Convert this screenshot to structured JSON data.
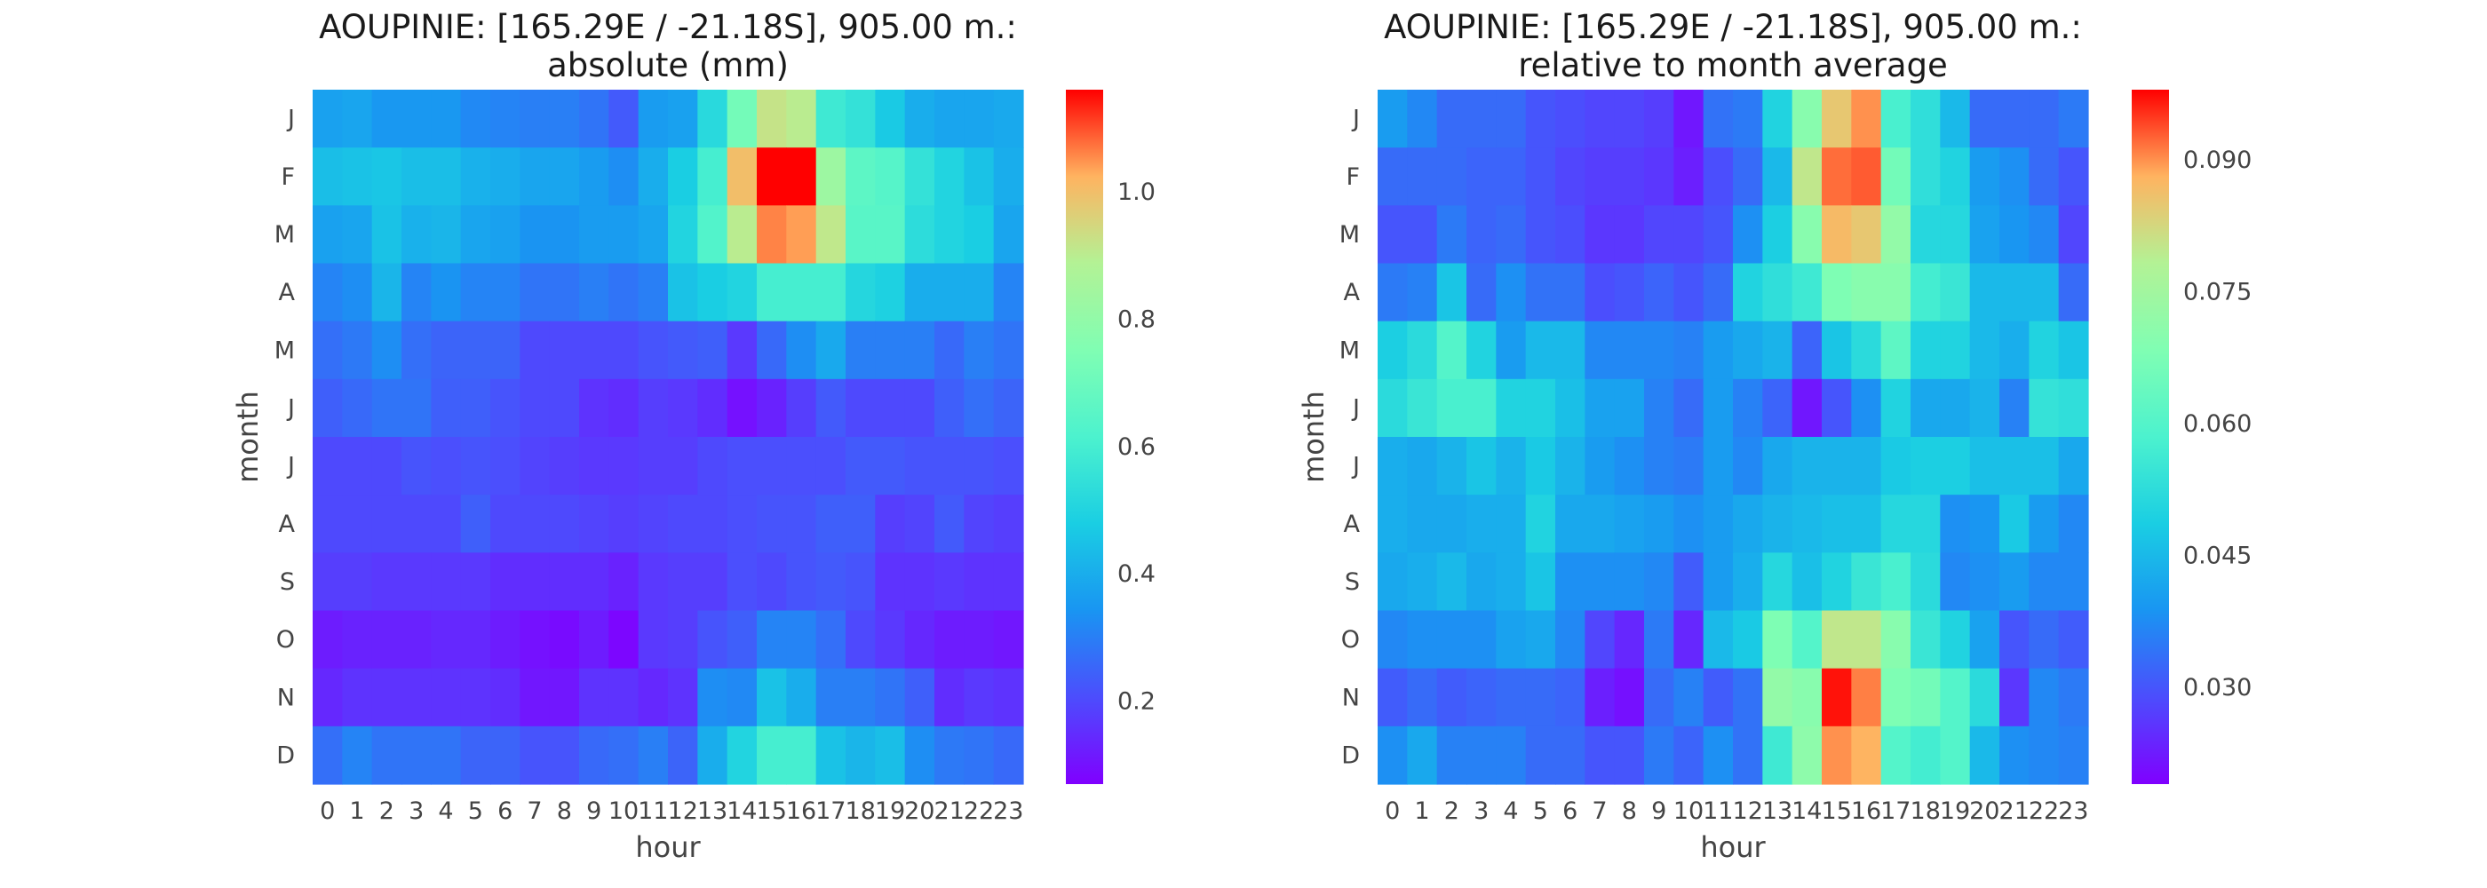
{
  "chart_data": [
    {
      "type": "heatmap",
      "title": "AOUPINIE: [165.29E / -21.18S], 905.00 m.:",
      "subtitle": "absolute (mm)",
      "xlabel": "hour",
      "ylabel": "month",
      "x": [
        "0",
        "1",
        "2",
        "3",
        "4",
        "5",
        "6",
        "7",
        "8",
        "9",
        "10",
        "11",
        "12",
        "13",
        "14",
        "15",
        "16",
        "17",
        "18",
        "19",
        "20",
        "21",
        "22",
        "23"
      ],
      "y": [
        "J",
        "F",
        "M",
        "A",
        "M",
        "J",
        "J",
        "A",
        "S",
        "O",
        "N",
        "D"
      ],
      "colormap": "rainbow",
      "vmin": 0.07,
      "vmax": 1.16,
      "colorbar_ticks": [
        0.2,
        0.4,
        0.6,
        0.8,
        1.0
      ],
      "colorbar_tick_labels": [
        "0.2",
        "0.4",
        "0.6",
        "0.8",
        "1.0"
      ],
      "values": [
        [
          0.37,
          0.38,
          0.35,
          0.35,
          0.35,
          0.32,
          0.31,
          0.3,
          0.3,
          0.28,
          0.23,
          0.36,
          0.37,
          0.52,
          0.72,
          0.92,
          0.9,
          0.58,
          0.55,
          0.47,
          0.4,
          0.38,
          0.38,
          0.39
        ],
        [
          0.44,
          0.45,
          0.46,
          0.44,
          0.44,
          0.41,
          0.4,
          0.38,
          0.38,
          0.36,
          0.33,
          0.4,
          0.48,
          0.6,
          1.0,
          1.16,
          1.16,
          0.83,
          0.66,
          0.64,
          0.55,
          0.5,
          0.45,
          0.4
        ],
        [
          0.37,
          0.38,
          0.45,
          0.41,
          0.42,
          0.38,
          0.37,
          0.34,
          0.34,
          0.36,
          0.36,
          0.38,
          0.5,
          0.63,
          0.9,
          1.06,
          1.04,
          0.91,
          0.65,
          0.65,
          0.53,
          0.5,
          0.48,
          0.38
        ],
        [
          0.31,
          0.33,
          0.42,
          0.31,
          0.34,
          0.31,
          0.31,
          0.28,
          0.28,
          0.3,
          0.28,
          0.3,
          0.45,
          0.48,
          0.5,
          0.6,
          0.6,
          0.6,
          0.51,
          0.49,
          0.4,
          0.4,
          0.4,
          0.31
        ],
        [
          0.27,
          0.29,
          0.33,
          0.27,
          0.25,
          0.25,
          0.25,
          0.2,
          0.2,
          0.2,
          0.2,
          0.22,
          0.23,
          0.24,
          0.17,
          0.26,
          0.33,
          0.39,
          0.3,
          0.3,
          0.3,
          0.26,
          0.3,
          0.28
        ],
        [
          0.24,
          0.26,
          0.28,
          0.28,
          0.24,
          0.24,
          0.22,
          0.2,
          0.2,
          0.16,
          0.15,
          0.18,
          0.17,
          0.15,
          0.1,
          0.13,
          0.18,
          0.23,
          0.2,
          0.2,
          0.2,
          0.24,
          0.27,
          0.25
        ],
        [
          0.2,
          0.2,
          0.2,
          0.22,
          0.21,
          0.22,
          0.21,
          0.19,
          0.18,
          0.17,
          0.17,
          0.18,
          0.18,
          0.2,
          0.21,
          0.21,
          0.21,
          0.21,
          0.23,
          0.23,
          0.22,
          0.22,
          0.22,
          0.21
        ],
        [
          0.2,
          0.2,
          0.2,
          0.2,
          0.2,
          0.24,
          0.2,
          0.2,
          0.2,
          0.19,
          0.18,
          0.19,
          0.2,
          0.2,
          0.21,
          0.22,
          0.22,
          0.24,
          0.24,
          0.18,
          0.19,
          0.23,
          0.19,
          0.18
        ],
        [
          0.18,
          0.18,
          0.17,
          0.17,
          0.17,
          0.17,
          0.15,
          0.15,
          0.15,
          0.15,
          0.13,
          0.17,
          0.18,
          0.18,
          0.21,
          0.2,
          0.22,
          0.23,
          0.22,
          0.16,
          0.16,
          0.17,
          0.16,
          0.16
        ],
        [
          0.12,
          0.13,
          0.13,
          0.13,
          0.14,
          0.14,
          0.12,
          0.1,
          0.09,
          0.12,
          0.08,
          0.17,
          0.18,
          0.22,
          0.24,
          0.31,
          0.31,
          0.27,
          0.2,
          0.17,
          0.14,
          0.12,
          0.12,
          0.11
        ],
        [
          0.14,
          0.16,
          0.16,
          0.16,
          0.16,
          0.16,
          0.15,
          0.11,
          0.11,
          0.16,
          0.16,
          0.14,
          0.16,
          0.33,
          0.32,
          0.45,
          0.4,
          0.3,
          0.3,
          0.28,
          0.24,
          0.15,
          0.17,
          0.16
        ],
        [
          0.27,
          0.31,
          0.28,
          0.28,
          0.28,
          0.25,
          0.25,
          0.22,
          0.22,
          0.26,
          0.27,
          0.3,
          0.25,
          0.4,
          0.5,
          0.6,
          0.6,
          0.45,
          0.42,
          0.44,
          0.33,
          0.29,
          0.28,
          0.26
        ]
      ]
    },
    {
      "type": "heatmap",
      "title": "AOUPINIE: [165.29E / -21.18S], 905.00 m.:",
      "subtitle": "relative to month average",
      "xlabel": "hour",
      "ylabel": "month",
      "x": [
        "0",
        "1",
        "2",
        "3",
        "4",
        "5",
        "6",
        "7",
        "8",
        "9",
        "10",
        "11",
        "12",
        "13",
        "14",
        "15",
        "16",
        "17",
        "18",
        "19",
        "20",
        "21",
        "22",
        "23"
      ],
      "y": [
        "J",
        "F",
        "M",
        "A",
        "M",
        "J",
        "J",
        "A",
        "S",
        "O",
        "N",
        "D"
      ],
      "colormap": "rainbow",
      "vmin": 0.019,
      "vmax": 0.098,
      "colorbar_ticks": [
        0.03,
        0.045,
        0.06,
        0.075,
        0.09
      ],
      "colorbar_tick_labels": [
        "0.030",
        "0.045",
        "0.060",
        "0.075",
        "0.090"
      ],
      "values": [
        [
          0.04,
          0.037,
          0.033,
          0.033,
          0.033,
          0.03,
          0.029,
          0.028,
          0.028,
          0.027,
          0.022,
          0.034,
          0.035,
          0.05,
          0.07,
          0.085,
          0.09,
          0.058,
          0.053,
          0.045,
          0.033,
          0.033,
          0.033,
          0.035
        ],
        [
          0.033,
          0.033,
          0.033,
          0.032,
          0.032,
          0.03,
          0.028,
          0.027,
          0.027,
          0.026,
          0.023,
          0.029,
          0.033,
          0.045,
          0.08,
          0.092,
          0.093,
          0.066,
          0.053,
          0.05,
          0.04,
          0.038,
          0.033,
          0.03
        ],
        [
          0.03,
          0.03,
          0.035,
          0.032,
          0.033,
          0.03,
          0.029,
          0.026,
          0.026,
          0.028,
          0.028,
          0.03,
          0.038,
          0.049,
          0.07,
          0.087,
          0.085,
          0.072,
          0.051,
          0.051,
          0.041,
          0.039,
          0.037,
          0.028
        ],
        [
          0.035,
          0.036,
          0.047,
          0.033,
          0.038,
          0.034,
          0.034,
          0.029,
          0.03,
          0.032,
          0.03,
          0.033,
          0.05,
          0.053,
          0.056,
          0.068,
          0.07,
          0.07,
          0.057,
          0.055,
          0.045,
          0.045,
          0.045,
          0.033
        ],
        [
          0.049,
          0.052,
          0.06,
          0.05,
          0.04,
          0.045,
          0.045,
          0.037,
          0.037,
          0.037,
          0.036,
          0.04,
          0.042,
          0.044,
          0.032,
          0.047,
          0.052,
          0.062,
          0.05,
          0.05,
          0.045,
          0.043,
          0.05,
          0.047
        ],
        [
          0.052,
          0.055,
          0.058,
          0.058,
          0.05,
          0.05,
          0.046,
          0.041,
          0.041,
          0.036,
          0.033,
          0.04,
          0.036,
          0.032,
          0.022,
          0.03,
          0.038,
          0.05,
          0.042,
          0.042,
          0.044,
          0.036,
          0.054,
          0.053
        ],
        [
          0.043,
          0.042,
          0.044,
          0.047,
          0.044,
          0.048,
          0.044,
          0.04,
          0.038,
          0.036,
          0.035,
          0.04,
          0.037,
          0.042,
          0.044,
          0.044,
          0.044,
          0.048,
          0.049,
          0.049,
          0.046,
          0.046,
          0.046,
          0.042
        ],
        [
          0.043,
          0.042,
          0.042,
          0.043,
          0.043,
          0.05,
          0.042,
          0.042,
          0.041,
          0.04,
          0.038,
          0.04,
          0.042,
          0.044,
          0.045,
          0.046,
          0.046,
          0.051,
          0.051,
          0.038,
          0.039,
          0.048,
          0.04,
          0.037
        ],
        [
          0.042,
          0.043,
          0.045,
          0.042,
          0.043,
          0.047,
          0.038,
          0.038,
          0.038,
          0.037,
          0.031,
          0.04,
          0.043,
          0.051,
          0.046,
          0.05,
          0.055,
          0.058,
          0.052,
          0.037,
          0.038,
          0.04,
          0.037,
          0.037
        ],
        [
          0.037,
          0.038,
          0.038,
          0.038,
          0.041,
          0.042,
          0.037,
          0.028,
          0.024,
          0.035,
          0.024,
          0.045,
          0.048,
          0.068,
          0.06,
          0.08,
          0.08,
          0.07,
          0.055,
          0.05,
          0.041,
          0.03,
          0.033,
          0.031
        ],
        [
          0.031,
          0.033,
          0.031,
          0.032,
          0.033,
          0.033,
          0.032,
          0.023,
          0.021,
          0.033,
          0.036,
          0.031,
          0.034,
          0.072,
          0.07,
          0.097,
          0.091,
          0.068,
          0.066,
          0.06,
          0.052,
          0.026,
          0.037,
          0.035
        ],
        [
          0.038,
          0.042,
          0.036,
          0.036,
          0.036,
          0.033,
          0.033,
          0.03,
          0.03,
          0.035,
          0.032,
          0.038,
          0.034,
          0.056,
          0.071,
          0.09,
          0.088,
          0.06,
          0.057,
          0.06,
          0.045,
          0.038,
          0.037,
          0.036
        ]
      ]
    }
  ]
}
